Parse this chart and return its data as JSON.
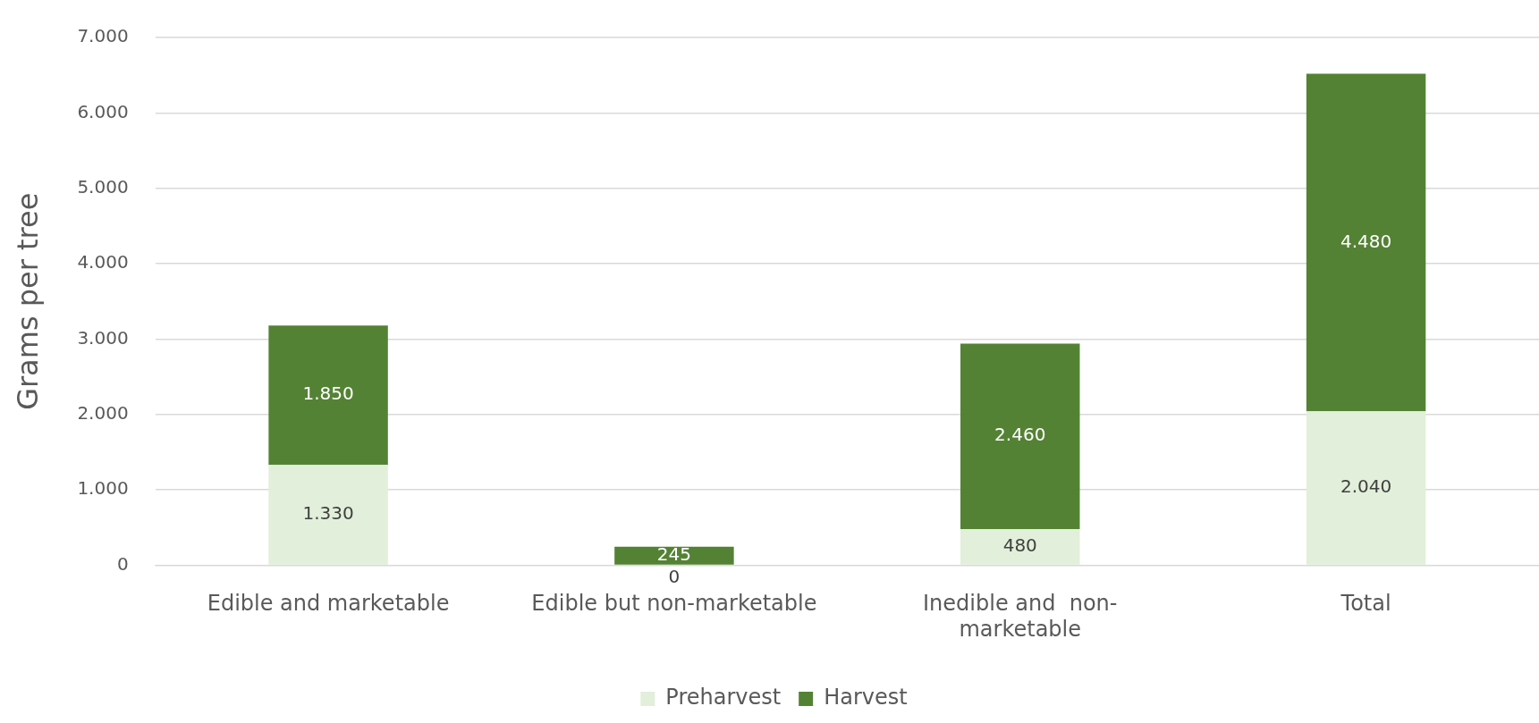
{
  "chart_data": {
    "type": "bar",
    "stacked": true,
    "ylabel": "Grams per tree",
    "categories": [
      "Edible and marketable",
      "Edible but non-marketable",
      "Inedible and  non-marketable",
      "Total"
    ],
    "series": [
      {
        "name": "Preharvest",
        "color": "#e2efda",
        "values": [
          1330,
          0,
          480,
          2040
        ],
        "value_labels": [
          "1.330",
          "0",
          "480",
          "2.040"
        ]
      },
      {
        "name": "Harvest",
        "color": "#548235",
        "values": [
          1850,
          245,
          2460,
          4480
        ],
        "value_labels": [
          "1.850",
          "245",
          "2.460",
          "4.480"
        ]
      }
    ],
    "ylim": [
      0,
      7000
    ],
    "yticks": [
      {
        "value": 0,
        "label": "0"
      },
      {
        "value": 1000,
        "label": "1.000"
      },
      {
        "value": 2000,
        "label": "2.000"
      },
      {
        "value": 3000,
        "label": "3.000"
      },
      {
        "value": 4000,
        "label": "4.000"
      },
      {
        "value": 5000,
        "label": "5.000"
      },
      {
        "value": 6000,
        "label": "6.000"
      },
      {
        "value": 7000,
        "label": "7.000"
      }
    ],
    "grid": "y",
    "legend": "bottom"
  }
}
